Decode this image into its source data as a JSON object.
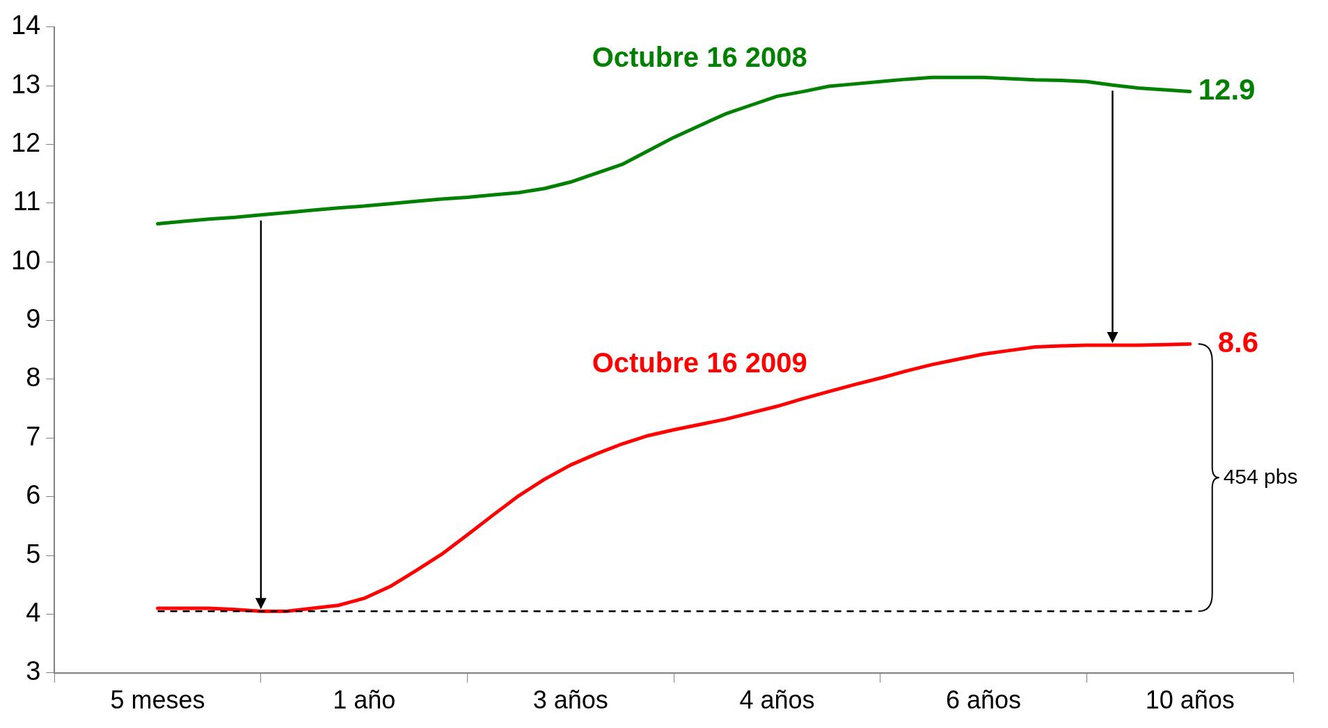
{
  "chart_data": {
    "type": "line",
    "categories": [
      null,
      null,
      null,
      null,
      "5 meses",
      null,
      null,
      null,
      null,
      null,
      null,
      null,
      "1 año",
      null,
      null,
      null,
      null,
      null,
      null,
      null,
      "3 años",
      null,
      null,
      null,
      null,
      null,
      null,
      null,
      "4 años",
      null,
      null,
      null,
      null,
      null,
      null,
      null,
      "6 años",
      null,
      null,
      null,
      null,
      null,
      null,
      null,
      "10 años",
      null,
      null,
      null,
      null
    ],
    "series": [
      {
        "name": "Octubre 16 2008",
        "color": "#008000",
        "values": [
          null,
          null,
          null,
          null,
          10.65,
          10.69,
          10.73,
          10.76,
          10.8,
          10.84,
          10.88,
          10.92,
          10.95,
          10.99,
          11.03,
          11.07,
          11.1,
          11.14,
          11.18,
          11.25,
          11.36,
          11.51,
          11.66,
          11.89,
          12.12,
          12.32,
          12.52,
          12.67,
          12.82,
          12.9,
          12.99,
          13.03,
          13.07,
          13.11,
          13.14,
          13.14,
          13.14,
          13.12,
          13.1,
          13.09,
          13.07,
          13.01,
          12.96,
          12.93,
          12.9,
          null,
          null,
          null,
          null
        ],
        "value_labels": [
          null,
          null,
          null,
          null,
          null,
          null,
          null,
          null,
          null,
          null,
          null,
          null,
          null,
          null,
          null,
          null,
          null,
          null,
          null,
          null,
          null,
          null,
          null,
          null,
          null,
          null,
          null,
          null,
          null,
          null,
          null,
          null,
          null,
          null,
          null,
          null,
          null,
          null,
          null,
          null,
          null,
          null,
          null,
          null,
          "12.9",
          null,
          null,
          null,
          null
        ]
      },
      {
        "name": "Octubre 16 2009",
        "color": "#ff0000",
        "values": [
          null,
          null,
          null,
          null,
          4.1,
          4.1,
          4.1,
          4.08,
          4.05,
          4.05,
          4.1,
          4.15,
          4.27,
          4.47,
          4.74,
          5.02,
          5.35,
          5.69,
          6.02,
          6.3,
          6.54,
          6.73,
          6.9,
          7.04,
          7.14,
          7.23,
          7.32,
          7.43,
          7.54,
          7.67,
          7.79,
          7.91,
          8.02,
          8.14,
          8.25,
          8.34,
          8.43,
          8.49,
          8.55,
          8.57,
          8.58,
          8.58,
          8.58,
          8.59,
          8.6,
          null,
          null,
          null,
          null
        ],
        "value_labels": [
          null,
          null,
          null,
          null,
          null,
          null,
          null,
          null,
          null,
          null,
          null,
          null,
          null,
          null,
          null,
          null,
          null,
          null,
          null,
          null,
          null,
          null,
          null,
          null,
          null,
          null,
          null,
          null,
          null,
          null,
          null,
          null,
          null,
          null,
          null,
          null,
          null,
          null,
          null,
          null,
          null,
          null,
          null,
          null,
          "8.6",
          null,
          null,
          null,
          null
        ]
      }
    ],
    "ylim": [
      3,
      14
    ],
    "yticks": [
      3,
      4,
      5,
      6,
      7,
      8,
      9,
      10,
      11,
      12,
      13,
      14
    ],
    "grid": false,
    "legend": false,
    "marker": "none",
    "line_style": "solid",
    "ref_lines": [
      {
        "axis": "y",
        "value": 4.05,
        "label": null,
        "color": "#000000",
        "line_style": "dashed"
      }
    ],
    "annotations": [
      "454 pbs"
    ]
  }
}
